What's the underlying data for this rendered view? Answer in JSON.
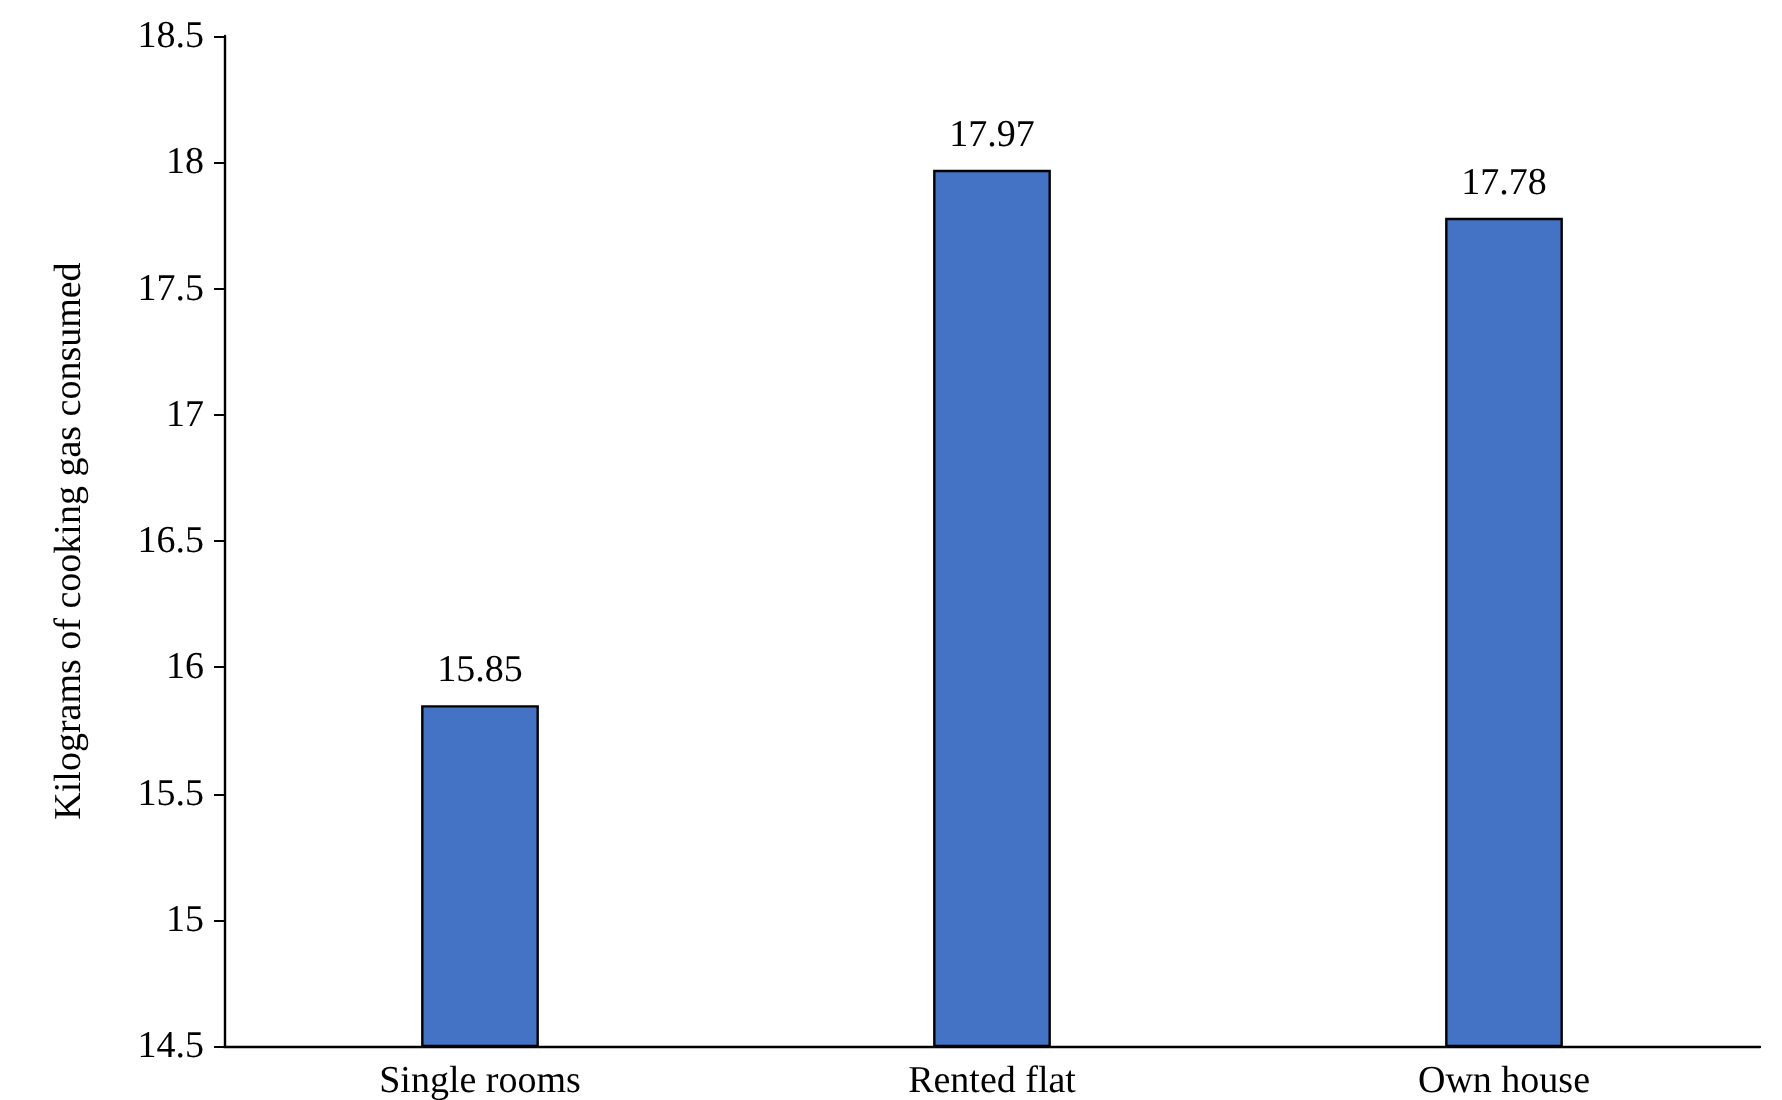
{
  "chart_data": {
    "type": "bar",
    "ylabel": "Kilograms of cooking gas consumed",
    "categories": [
      "Single rooms",
      "Rented flat",
      "Own house"
    ],
    "values": [
      15.85,
      17.97,
      17.78
    ],
    "color": "#4472c4",
    "ylim": [
      14.5,
      18.5
    ],
    "yticks": [
      14.5,
      15,
      15.5,
      16,
      16.5,
      17,
      17.5,
      18,
      18.5
    ],
    "data_labels": true,
    "grid": false
  }
}
